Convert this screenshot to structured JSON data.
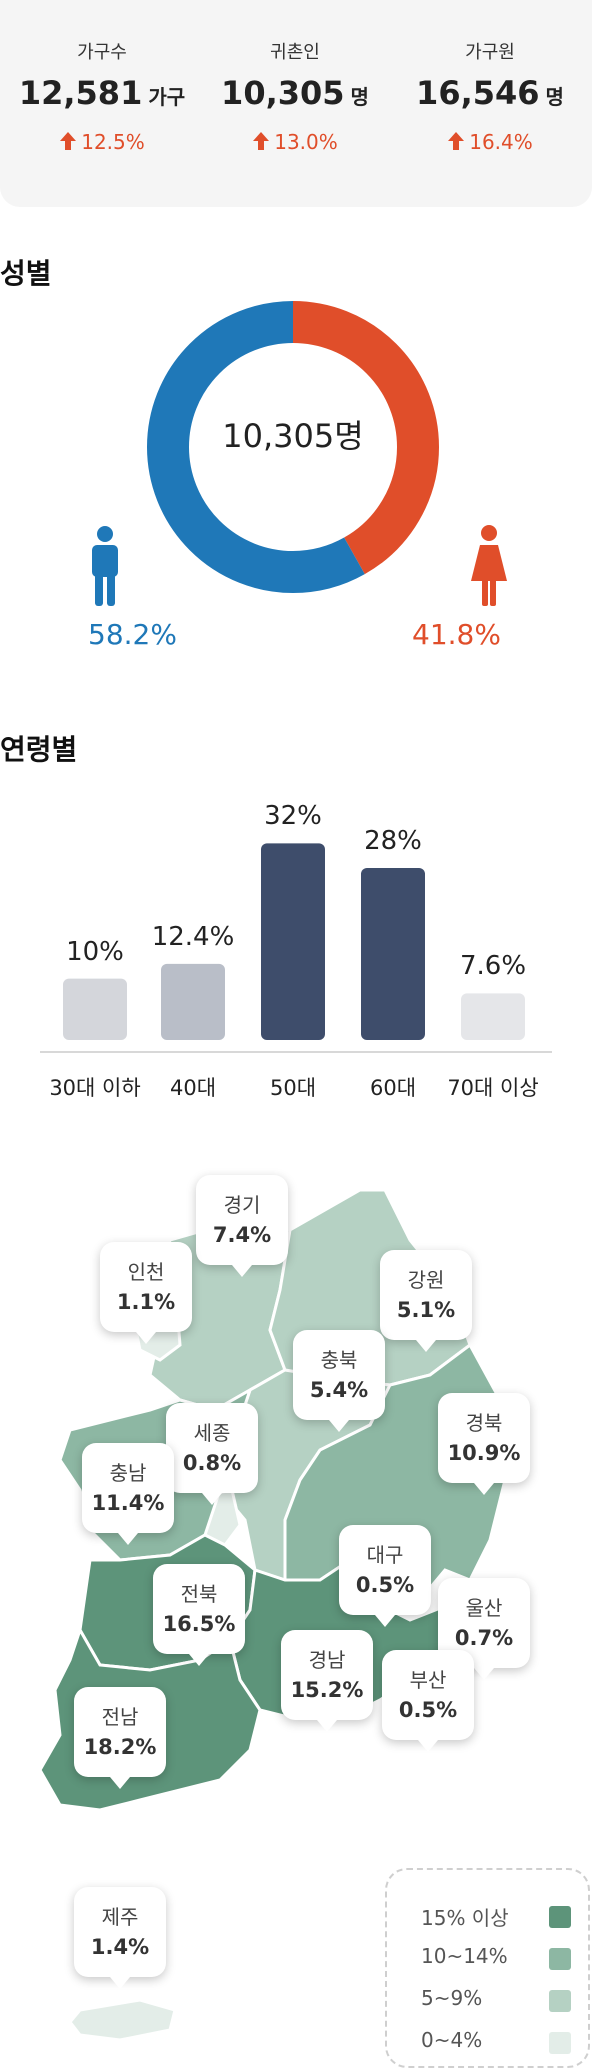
{
  "summary": {
    "items": [
      {
        "label": "가구수",
        "value": "12,581",
        "unit": "가구",
        "change": "12.5%"
      },
      {
        "label": "귀촌인",
        "value": "10,305",
        "unit": "명",
        "change": "13.0%"
      },
      {
        "label": "가구원",
        "value": "16,546",
        "unit": "명",
        "change": "16.4%"
      }
    ],
    "change_color": "#e04e2a"
  },
  "gender": {
    "title": "성별",
    "total": "10,305명",
    "male_pct_label": "58.2%",
    "female_pct_label": "41.8%",
    "male_icon": "male-person-icon",
    "female_icon": "female-person-icon",
    "male_color": "#1f78b8",
    "female_color": "#e04e2a"
  },
  "age": {
    "title": "연령별"
  },
  "map": {
    "legend": [
      {
        "label": "15% 이상",
        "color": "#5d947a"
      },
      {
        "label": "10~14%",
        "color": "#8db7a3"
      },
      {
        "label": "5~9%",
        "color": "#b5d1c3"
      },
      {
        "label": "0~4%",
        "color": "#e3ede8"
      }
    ],
    "regions": [
      {
        "name": "경기",
        "value": "7.4%"
      },
      {
        "name": "인천",
        "value": "1.1%"
      },
      {
        "name": "강원",
        "value": "5.1%"
      },
      {
        "name": "충북",
        "value": "5.4%"
      },
      {
        "name": "세종",
        "value": "0.8%"
      },
      {
        "name": "충남",
        "value": "11.4%"
      },
      {
        "name": "경북",
        "value": "10.9%"
      },
      {
        "name": "대구",
        "value": "0.5%"
      },
      {
        "name": "울산",
        "value": "0.7%"
      },
      {
        "name": "전북",
        "value": "16.5%"
      },
      {
        "name": "경남",
        "value": "15.2%"
      },
      {
        "name": "부산",
        "value": "0.5%"
      },
      {
        "name": "전남",
        "value": "18.2%"
      },
      {
        "name": "제주",
        "value": "1.4%"
      }
    ]
  },
  "chart_data": [
    {
      "type": "pie",
      "categories": [
        "남성",
        "여성"
      ],
      "values": [
        58.2,
        41.8
      ],
      "title": "성별",
      "colors": [
        "#1f78b8",
        "#e04e2a"
      ]
    },
    {
      "type": "bar",
      "title": "연령별",
      "categories": [
        "30대 이하",
        "40대",
        "50대",
        "60대",
        "70대 이상"
      ],
      "values": [
        10,
        12.4,
        32,
        28,
        7.6
      ],
      "value_labels": [
        "10%",
        "12.4%",
        "32%",
        "28%",
        "7.6%"
      ],
      "ylim": [
        0,
        35
      ],
      "colors": [
        "#d4d6db",
        "#b9bec8",
        "#3e4d6b",
        "#3e4d6b",
        "#e5e6e9"
      ]
    }
  ]
}
